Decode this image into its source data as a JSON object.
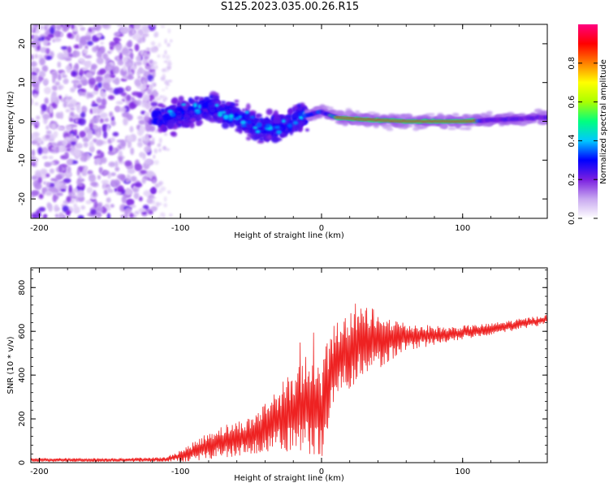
{
  "title": "S125.2023.035.00.26.R15",
  "chart_data": [
    {
      "type": "heatmap",
      "title": "S125.2023.035.00.26.R15",
      "xlabel": "Height of straight line (km)",
      "ylabel": "Frequency (Hz)",
      "xlim": [
        -206,
        160
      ],
      "ylim": [
        -25,
        25
      ],
      "xticks": [
        -200,
        -100,
        0,
        100
      ],
      "yticks": [
        -20,
        -10,
        0,
        10,
        20
      ],
      "colorbar": {
        "label": "Normalized spectral amplitude",
        "range": [
          0,
          1
        ],
        "ticks": [
          0.0,
          0.2,
          0.4,
          0.6,
          0.8
        ],
        "colors": [
          "#ffffff",
          "#c8a8f0",
          "#7a1fe0",
          "#0000ff",
          "#00c8ff",
          "#00ff7f",
          "#aaff00",
          "#ffff00",
          "#ff8000",
          "#ff0000",
          "#ff0080"
        ]
      },
      "ridge": [
        {
          "x": -115,
          "y": 0.5
        },
        {
          "x": -100,
          "y": 2
        },
        {
          "x": -80,
          "y": 4
        },
        {
          "x": -60,
          "y": 1
        },
        {
          "x": -40,
          "y": -2
        },
        {
          "x": -25,
          "y": -1
        },
        {
          "x": -15,
          "y": 1
        },
        {
          "x": -5,
          "y": 2
        },
        {
          "x": 0,
          "y": 2.5
        },
        {
          "x": 10,
          "y": 1
        },
        {
          "x": 30,
          "y": 0.5
        },
        {
          "x": 60,
          "y": 0
        },
        {
          "x": 100,
          "y": 0
        },
        {
          "x": 130,
          "y": 0.5
        },
        {
          "x": 160,
          "y": 1
        }
      ]
    },
    {
      "type": "line",
      "xlabel": "Height of straight line (km)",
      "ylabel": "SNR (10 * v/v)",
      "xlim": [
        -206,
        160
      ],
      "ylim": [
        0,
        890
      ],
      "xticks": [
        -200,
        -100,
        0,
        100
      ],
      "yticks": [
        0,
        200,
        400,
        600,
        800
      ],
      "line_color": "#ee2222",
      "envelope": [
        {
          "x": -206,
          "mean": 12,
          "spread": 10
        },
        {
          "x": -150,
          "mean": 12,
          "spread": 10
        },
        {
          "x": -110,
          "mean": 15,
          "spread": 12
        },
        {
          "x": -95,
          "mean": 40,
          "spread": 40
        },
        {
          "x": -75,
          "mean": 90,
          "spread": 80
        },
        {
          "x": -50,
          "mean": 120,
          "spread": 100
        },
        {
          "x": -30,
          "mean": 200,
          "spread": 170
        },
        {
          "x": -10,
          "mean": 260,
          "spread": 260
        },
        {
          "x": 0,
          "mean": 220,
          "spread": 240
        },
        {
          "x": 10,
          "mean": 480,
          "spread": 200
        },
        {
          "x": 25,
          "mean": 540,
          "spread": 220
        },
        {
          "x": 40,
          "mean": 560,
          "spread": 150
        },
        {
          "x": 60,
          "mean": 575,
          "spread": 70
        },
        {
          "x": 90,
          "mean": 585,
          "spread": 40
        },
        {
          "x": 120,
          "mean": 610,
          "spread": 30
        },
        {
          "x": 160,
          "mean": 655,
          "spread": 25
        }
      ]
    }
  ]
}
